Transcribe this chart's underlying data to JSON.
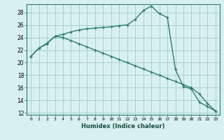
{
  "xlabel": "Humidex (Indice chaleur)",
  "x": [
    0,
    1,
    2,
    3,
    4,
    5,
    6,
    7,
    8,
    9,
    10,
    11,
    12,
    13,
    14,
    15,
    16,
    17,
    18,
    19,
    20,
    21,
    22,
    23
  ],
  "line1": [
    21.0,
    22.3,
    23.1,
    24.2,
    24.5,
    24.9,
    25.2,
    25.4,
    25.5,
    25.6,
    25.7,
    25.9,
    26.0,
    26.9,
    28.3,
    29.0,
    27.8,
    27.2,
    18.9,
    16.2,
    15.8,
    13.7,
    13.0,
    12.3
  ],
  "line2": [
    21.0,
    22.3,
    23.0,
    24.2,
    24.0,
    23.5,
    23.0,
    22.5,
    22.0,
    21.5,
    21.0,
    20.5,
    20.0,
    19.5,
    19.0,
    18.5,
    18.0,
    17.5,
    17.0,
    16.5,
    16.0,
    15.0,
    13.5,
    12.3
  ],
  "line_color": "#2e7d6e",
  "bg_color": "#d8f0f0",
  "grid_color": "#a8d0d0",
  "ylim": [
    12,
    29
  ],
  "yticks": [
    12,
    14,
    16,
    18,
    20,
    22,
    24,
    26,
    28
  ],
  "xlim": [
    -0.5,
    23.5
  ]
}
